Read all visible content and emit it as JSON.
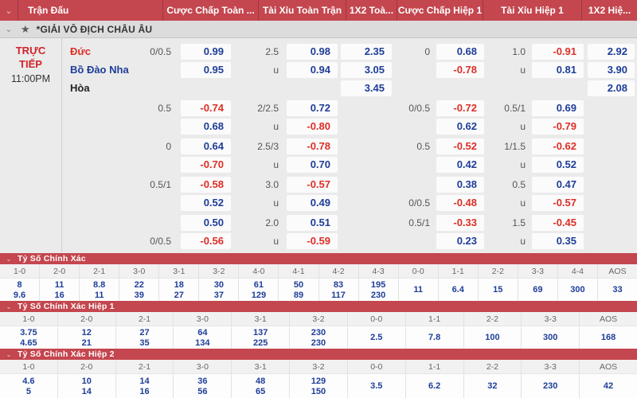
{
  "icons": {
    "chevron_down": "⌄",
    "star": "★"
  },
  "colors": {
    "header_red": "#c4464e",
    "value_blue": "#1e3d99",
    "value_negative_red": "#dd2f26",
    "team_home_red": "#dd2f26",
    "team_away_blue": "#1e3d99"
  },
  "header": {
    "columns": [
      "Trận Đấu",
      "Cược Chấp Toàn ...",
      "Tài Xỉu Toàn Trận",
      "1X2 Toà...",
      "Cược Chấp Hiệp 1",
      "Tài Xỉu Hiệp 1",
      "1X2 Hiệ..."
    ]
  },
  "league": {
    "name": "*GIẢI VÔ ĐỊCH CHÂU ÂU"
  },
  "match": {
    "status": "TRỰC TIẾP",
    "time": "11:00PM"
  },
  "odds_groups": [
    {
      "teams": [
        "Đức",
        "Bồ Đào Nha",
        "Hòa"
      ],
      "lines": [
        {
          "hc_label": "0/0.5",
          "hc": "0.99",
          "ou_label": "2.5",
          "ou": "0.98",
          "x2": "2.35",
          "hc1_label": "0",
          "hc1": "0.68",
          "ou1_label": "1.0",
          "ou1": "-0.91",
          "x2h1": "2.92"
        },
        {
          "hc_label": "",
          "hc": "0.95",
          "ou_label": "u",
          "ou": "0.94",
          "x2": "3.05",
          "hc1_label": "",
          "hc1": "-0.78",
          "ou1_label": "u",
          "ou1": "0.81",
          "x2h1": "3.90"
        },
        {
          "hc_label": "",
          "hc": "",
          "ou_label": "",
          "ou": "",
          "x2": "3.45",
          "hc1_label": "",
          "hc1": "",
          "ou1_label": "",
          "ou1": "",
          "x2h1": "2.08"
        }
      ]
    },
    {
      "teams": [],
      "lines": [
        {
          "hc_label": "0.5",
          "hc": "-0.74",
          "ou_label": "2/2.5",
          "ou": "0.72",
          "x2": "",
          "hc1_label": "0/0.5",
          "hc1": "-0.72",
          "ou1_label": "0.5/1",
          "ou1": "0.69",
          "x2h1": ""
        },
        {
          "hc_label": "",
          "hc": "0.68",
          "ou_label": "u",
          "ou": "-0.80",
          "x2": "",
          "hc1_label": "",
          "hc1": "0.62",
          "ou1_label": "u",
          "ou1": "-0.79",
          "x2h1": ""
        }
      ]
    },
    {
      "teams": [],
      "lines": [
        {
          "hc_label": "0",
          "hc": "0.64",
          "ou_label": "2.5/3",
          "ou": "-0.78",
          "x2": "",
          "hc1_label": "0.5",
          "hc1": "-0.52",
          "ou1_label": "1/1.5",
          "ou1": "-0.62",
          "x2h1": ""
        },
        {
          "hc_label": "",
          "hc": "-0.70",
          "ou_label": "u",
          "ou": "0.70",
          "x2": "",
          "hc1_label": "",
          "hc1": "0.42",
          "ou1_label": "u",
          "ou1": "0.52",
          "x2h1": ""
        }
      ]
    },
    {
      "teams": [],
      "lines": [
        {
          "hc_label": "0.5/1",
          "hc": "-0.58",
          "ou_label": "3.0",
          "ou": "-0.57",
          "x2": "",
          "hc1_label": "",
          "hc1": "0.38",
          "ou1_label": "0.5",
          "ou1": "0.47",
          "x2h1": ""
        },
        {
          "hc_label": "",
          "hc": "0.52",
          "ou_label": "u",
          "ou": "0.49",
          "x2": "",
          "hc1_label": "0/0.5",
          "hc1": "-0.48",
          "ou1_label": "u",
          "ou1": "-0.57",
          "x2h1": ""
        }
      ]
    },
    {
      "teams": [],
      "lines": [
        {
          "hc_label": "",
          "hc": "0.50",
          "ou_label": "2.0",
          "ou": "0.51",
          "x2": "",
          "hc1_label": "0.5/1",
          "hc1": "-0.33",
          "ou1_label": "1.5",
          "ou1": "-0.45",
          "x2h1": ""
        },
        {
          "hc_label": "0/0.5",
          "hc": "-0.56",
          "ou_label": "u",
          "ou": "-0.59",
          "x2": "",
          "hc1_label": "",
          "hc1": "0.23",
          "ou1_label": "u",
          "ou1": "0.35",
          "x2h1": ""
        }
      ]
    }
  ],
  "score_sections": [
    {
      "title": "Tỷ Số Chính Xác",
      "columns": [
        {
          "score": "1-0",
          "vals": [
            "8",
            "9.6"
          ]
        },
        {
          "score": "2-0",
          "vals": [
            "11",
            "16"
          ]
        },
        {
          "score": "2-1",
          "vals": [
            "8.8",
            "11"
          ]
        },
        {
          "score": "3-0",
          "vals": [
            "22",
            "39"
          ]
        },
        {
          "score": "3-1",
          "vals": [
            "18",
            "27"
          ]
        },
        {
          "score": "3-2",
          "vals": [
            "30",
            "37"
          ]
        },
        {
          "score": "4-0",
          "vals": [
            "61",
            "129"
          ]
        },
        {
          "score": "4-1",
          "vals": [
            "50",
            "89"
          ]
        },
        {
          "score": "4-2",
          "vals": [
            "83",
            "117"
          ]
        },
        {
          "score": "4-3",
          "vals": [
            "195",
            "230"
          ]
        },
        {
          "score": "0-0",
          "vals": [
            "11"
          ]
        },
        {
          "score": "1-1",
          "vals": [
            "6.4"
          ]
        },
        {
          "score": "2-2",
          "vals": [
            "15"
          ]
        },
        {
          "score": "3-3",
          "vals": [
            "69"
          ]
        },
        {
          "score": "4-4",
          "vals": [
            "300"
          ]
        },
        {
          "score": "AOS",
          "vals": [
            "33"
          ]
        }
      ]
    },
    {
      "title": "Tỷ Số Chính Xác Hiệp 1",
      "columns": [
        {
          "score": "1-0",
          "vals": [
            "3.75",
            "4.65"
          ]
        },
        {
          "score": "2-0",
          "vals": [
            "12",
            "21"
          ]
        },
        {
          "score": "2-1",
          "vals": [
            "27",
            "35"
          ]
        },
        {
          "score": "3-0",
          "vals": [
            "64",
            "134"
          ]
        },
        {
          "score": "3-1",
          "vals": [
            "137",
            "225"
          ]
        },
        {
          "score": "3-2",
          "vals": [
            "230",
            "230"
          ]
        },
        {
          "score": "0-0",
          "vals": [
            "2.5"
          ]
        },
        {
          "score": "1-1",
          "vals": [
            "7.8"
          ]
        },
        {
          "score": "2-2",
          "vals": [
            "100"
          ]
        },
        {
          "score": "3-3",
          "vals": [
            "300"
          ]
        },
        {
          "score": "AOS",
          "vals": [
            "168"
          ]
        }
      ]
    },
    {
      "title": "Tỷ Số Chính Xác Hiệp 2",
      "columns": [
        {
          "score": "1-0",
          "vals": [
            "4.6",
            "5"
          ]
        },
        {
          "score": "2-0",
          "vals": [
            "10",
            "14"
          ]
        },
        {
          "score": "2-1",
          "vals": [
            "14",
            "16"
          ]
        },
        {
          "score": "3-0",
          "vals": [
            "36",
            "56"
          ]
        },
        {
          "score": "3-1",
          "vals": [
            "48",
            "65"
          ]
        },
        {
          "score": "3-2",
          "vals": [
            "129",
            "150"
          ]
        },
        {
          "score": "0-0",
          "vals": [
            "3.5"
          ]
        },
        {
          "score": "1-1",
          "vals": [
            "6.2"
          ]
        },
        {
          "score": "2-2",
          "vals": [
            "32"
          ]
        },
        {
          "score": "3-3",
          "vals": [
            "230"
          ]
        },
        {
          "score": "AOS",
          "vals": [
            "42"
          ]
        }
      ]
    }
  ]
}
